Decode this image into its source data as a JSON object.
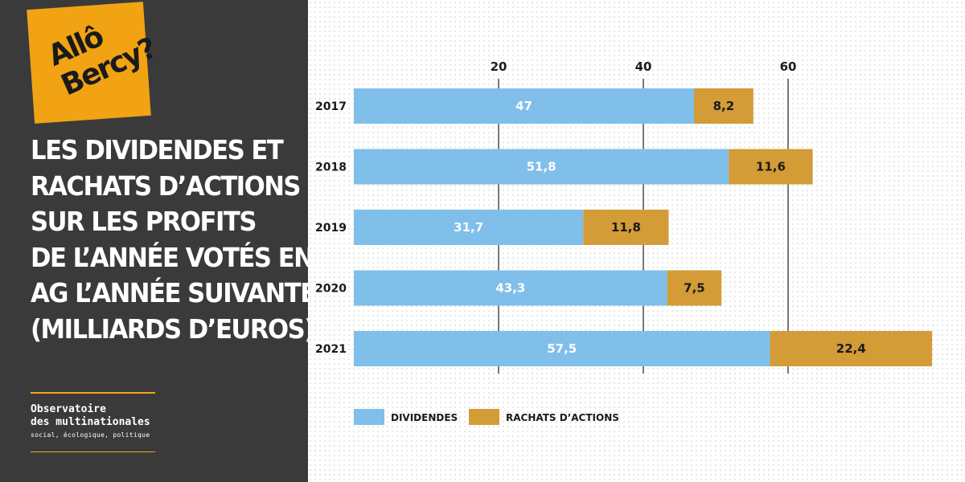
{
  "brand": {
    "logo_line1": "Allô",
    "logo_line2": "Bercy?",
    "logo_color": "#f1a313",
    "title_lines": [
      "LES  DIVIDENDES ET",
      "RACHATS D’ACTIONS",
      "SUR LES PROFITS",
      "DE L’ANNÉE VOTÉS EN",
      "AG L’ANNÉE SUIVANTE",
      "(MILLIARDS D’EUROS)"
    ],
    "org_line1": "Observatoire",
    "org_line2": "des multinationales",
    "org_tagline": "social, écologique, politique"
  },
  "chart_data": {
    "type": "bar",
    "orientation": "horizontal",
    "stacked": true,
    "title": "",
    "xlabel": "",
    "ylabel": "",
    "xlim": [
      0,
      80
    ],
    "xticks": [
      20,
      40,
      60
    ],
    "xtick_labels": [
      "20",
      "40",
      "60"
    ],
    "categories": [
      "2017",
      "2018",
      "2019",
      "2020",
      "2021"
    ],
    "series": [
      {
        "name": "DIVIDENDES",
        "color": "#80bfea",
        "values": [
          47,
          51.8,
          31.7,
          43.3,
          57.5
        ],
        "labels": [
          "47",
          "51,8",
          "31,7",
          "43,3",
          "57,5"
        ]
      },
      {
        "name": "RACHATS D’ACTIONS",
        "color": "#d39c37",
        "values": [
          8.2,
          11.6,
          11.8,
          7.5,
          22.4
        ],
        "labels": [
          "8,2",
          "11,6",
          "11,8",
          "7,5",
          "22,4"
        ]
      }
    ],
    "grid": true,
    "legend_position": "bottom-left"
  }
}
